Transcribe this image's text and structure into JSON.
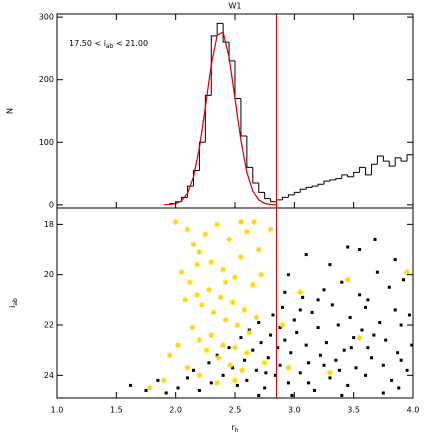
{
  "chart_data": [
    {
      "type": "histogram",
      "title": "W1",
      "ylabel": "N",
      "annotation": {
        "prefix": "17.50 < i",
        "subscript": "ab",
        "suffix": " < 21.00"
      },
      "bins": [
        1.95,
        2.0,
        2.05,
        2.1,
        2.15,
        2.2,
        2.25,
        2.3,
        2.35,
        2.4,
        2.45,
        2.5,
        2.55,
        2.6,
        2.65,
        2.7,
        2.75,
        2.8,
        2.85,
        2.9,
        2.95,
        3.0,
        3.05,
        3.1,
        3.15,
        3.2,
        3.25,
        3.3,
        3.35,
        3.4,
        3.45,
        3.5,
        3.55,
        3.6,
        3.65,
        3.7,
        3.75,
        3.8,
        3.85,
        3.9,
        3.95,
        4.0
      ],
      "values": [
        2,
        5,
        12,
        30,
        55,
        100,
        175,
        270,
        290,
        260,
        230,
        170,
        110,
        60,
        35,
        20,
        10,
        5,
        8,
        12,
        16,
        20,
        25,
        28,
        30,
        33,
        38,
        40,
        42,
        48,
        45,
        52,
        60,
        48,
        65,
        78,
        70,
        62,
        75,
        70,
        80
      ],
      "color": "#000000",
      "fit": {
        "color": "#d00000",
        "x": [
          1.9,
          1.95,
          2.0,
          2.05,
          2.1,
          2.15,
          2.2,
          2.25,
          2.3,
          2.35,
          2.4,
          2.45,
          2.5,
          2.55,
          2.6,
          2.65,
          2.7,
          2.75,
          2.8,
          2.85
        ],
        "values": [
          0.1,
          0.5,
          1.9,
          6.4,
          18.4,
          44.5,
          91,
          156,
          224,
          271,
          276,
          236,
          170,
          103,
          52,
          22,
          8,
          2.4,
          0.6,
          0.1
        ]
      },
      "vline": {
        "value": 2.85,
        "color": "#c00000"
      },
      "xlim": [
        1.0,
        4.0
      ],
      "ylim": [
        -5,
        305
      ],
      "yticks": [
        0,
        100,
        200,
        300
      ]
    },
    {
      "type": "scatter",
      "xlabel": {
        "main": "r",
        "subscript": "h"
      },
      "ylabel": {
        "main": "i",
        "subscript": "ab"
      },
      "xlim": [
        1.0,
        4.0
      ],
      "ylim": [
        17.35,
        24.9
      ],
      "y_inverted": true,
      "xticks": [
        {
          "value": 1.0,
          "label": "1.0"
        },
        1.5,
        {
          "value": 2.0,
          "label": "2.0"
        },
        2.5,
        {
          "value": 3.0,
          "label": "3.0"
        },
        3.5,
        {
          "value": 4.0,
          "label": "4.0"
        }
      ],
      "yticks": [
        18,
        20,
        22,
        24
      ],
      "vline": {
        "value": 2.85,
        "color": "#c00000"
      },
      "series": [
        {
          "marker": "square",
          "color": "#000000",
          "x": [
            1.62,
            1.75,
            1.85,
            1.92,
            2.02,
            2.1,
            2.15,
            2.2,
            2.28,
            2.3,
            2.35,
            2.4,
            2.45,
            2.48,
            2.52,
            2.55,
            2.58,
            2.6,
            2.62,
            2.65,
            2.68,
            2.7,
            2.72,
            2.75,
            2.78,
            2.8,
            2.82,
            2.84,
            2.86,
            2.88,
            2.9,
            2.92,
            2.95,
            2.97,
            3.0,
            3.02,
            3.05,
            3.07,
            3.1,
            3.12,
            3.15,
            3.17,
            3.2,
            3.22,
            3.25,
            3.27,
            3.3,
            3.32,
            3.35,
            3.37,
            3.4,
            3.42,
            3.45,
            3.47,
            3.5,
            3.52,
            3.55,
            3.57,
            3.6,
            3.62,
            3.65,
            3.67,
            3.7,
            3.72,
            3.75,
            3.77,
            3.8,
            3.82,
            3.85,
            3.87,
            3.9,
            3.92,
            3.95,
            3.97,
            3.99,
            3.1,
            3.3,
            3.55,
            3.85,
            3.45,
            2.95,
            3.68,
            2.98,
            3.4,
            3.75,
            2.7,
            3.2,
            3.6,
            3.9,
            3.05,
            3.48,
            2.88,
            3.12,
            3.38,
            3.62,
            3.88,
            2.76,
            2.92,
            3.25
          ],
          "values": [
            24.4,
            24.6,
            24.2,
            24.7,
            24.5,
            24.1,
            23.8,
            24.6,
            23.5,
            24.3,
            23.2,
            24.0,
            22.9,
            23.7,
            24.4,
            22.5,
            23.4,
            24.2,
            22.2,
            23.0,
            23.8,
            21.9,
            22.7,
            24.5,
            23.3,
            22.4,
            21.6,
            24.0,
            22.9,
            23.6,
            21.3,
            22.6,
            24.3,
            23.1,
            21.8,
            22.3,
            23.9,
            20.9,
            22.8,
            23.5,
            21.5,
            24.6,
            22.1,
            23.2,
            20.6,
            22.7,
            24.1,
            21.2,
            23.4,
            22.0,
            20.3,
            23.0,
            24.4,
            21.7,
            22.5,
            23.7,
            20.8,
            22.2,
            24.0,
            21.0,
            23.3,
            22.4,
            19.9,
            21.9,
            23.6,
            22.6,
            20.5,
            24.2,
            21.4,
            23.1,
            22.0,
            20.2,
            23.8,
            21.6,
            22.8,
            19.2,
            19.6,
            19.0,
            19.4,
            18.9,
            20.0,
            18.6,
            24.8,
            24.8,
            24.7,
            24.8,
            21.0,
            21.3,
            23.4,
            21.4,
            22.9,
            22.1,
            24.3,
            23.8,
            22.9,
            24.5,
            23.9,
            20.7,
            23.6
          ]
        },
        {
          "marker": "asterisk",
          "color": "#ffd700",
          "x": [
            2.0,
            2.1,
            2.15,
            2.2,
            2.25,
            2.3,
            2.35,
            2.4,
            2.45,
            2.5,
            2.55,
            2.6,
            2.65,
            2.7,
            2.05,
            2.12,
            2.18,
            2.22,
            2.28,
            2.32,
            2.38,
            2.42,
            2.48,
            2.52,
            2.58,
            2.62,
            2.68,
            2.72,
            2.08,
            2.14,
            2.2,
            2.26,
            2.3,
            2.36,
            2.4,
            2.46,
            2.5,
            2.56,
            2.6,
            2.02,
            1.95,
            1.9,
            1.78,
            2.1,
            2.2,
            2.35,
            2.5,
            2.75,
            2.8,
            2.66,
            2.9,
            3.05,
            3.45,
            3.95,
            3.3,
            3.55,
            2.95,
            2.18,
            2.42,
            2.55
          ],
          "values": [
            17.9,
            18.2,
            18.8,
            19.1,
            18.4,
            19.5,
            18.0,
            19.8,
            18.6,
            20.1,
            19.3,
            18.3,
            20.4,
            19.0,
            19.9,
            20.3,
            20.8,
            21.2,
            20.6,
            21.5,
            20.9,
            21.8,
            21.1,
            22.0,
            21.4,
            22.3,
            21.7,
            20.0,
            21.0,
            22.1,
            22.6,
            23.0,
            22.4,
            23.3,
            22.8,
            23.6,
            22.9,
            23.8,
            23.1,
            22.8,
            23.2,
            24.2,
            24.5,
            23.7,
            24.0,
            24.3,
            24.2,
            23.5,
            18.2,
            17.9,
            22.0,
            20.7,
            20.2,
            19.9,
            23.9,
            22.5,
            23.7,
            19.6,
            20.3,
            17.9
          ]
        }
      ]
    }
  ]
}
